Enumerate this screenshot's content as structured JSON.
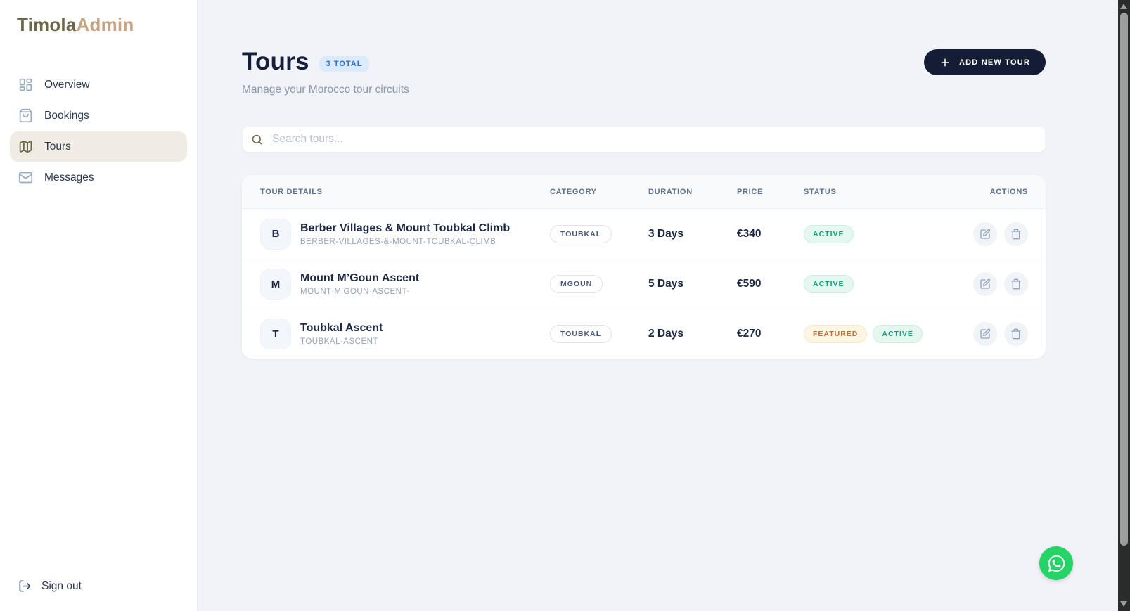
{
  "brand": {
    "primary": "Timola",
    "secondary": "Admin"
  },
  "sidebar": {
    "items": [
      {
        "label": "Overview",
        "icon": "dashboard-icon",
        "active": false
      },
      {
        "label": "Bookings",
        "icon": "shopping-bag-icon",
        "active": false
      },
      {
        "label": "Tours",
        "icon": "map-icon",
        "active": true
      },
      {
        "label": "Messages",
        "icon": "mail-icon",
        "active": false
      }
    ],
    "sign_out_label": "Sign out"
  },
  "header": {
    "title": "Tours",
    "total_badge": "3 TOTAL",
    "subtitle": "Manage your Morocco tour circuits",
    "add_button_label": "ADD NEW TOUR"
  },
  "search": {
    "placeholder": "Search tours..."
  },
  "table": {
    "columns": [
      "TOUR DETAILS",
      "CATEGORY",
      "DURATION",
      "PRICE",
      "STATUS",
      "ACTIONS"
    ],
    "rows": [
      {
        "initial": "B",
        "title": "Berber Villages & Mount Toubkal Climb",
        "slug": "BERBER-VILLAGES-&-MOUNT-TOUBKAL-CLIMB",
        "category": "TOUBKAL",
        "duration": "3 Days",
        "price": "€340",
        "statuses": [
          {
            "label": "ACTIVE",
            "type": "active"
          }
        ]
      },
      {
        "initial": "M",
        "title": "Mount M’Goun Ascent",
        "slug": "MOUNT-M’GOUN-ASCENT-",
        "category": "MGOUN",
        "duration": "5 Days",
        "price": "€590",
        "statuses": [
          {
            "label": "ACTIVE",
            "type": "active"
          }
        ]
      },
      {
        "initial": "T",
        "title": "Toubkal Ascent",
        "slug": "TOUBKAL-ASCENT",
        "category": "TOUBKAL",
        "duration": "2 Days",
        "price": "€270",
        "statuses": [
          {
            "label": "FEATURED",
            "type": "featured"
          },
          {
            "label": "ACTIVE",
            "type": "active"
          }
        ]
      }
    ]
  },
  "colors": {
    "brand_primary": "#6b6748",
    "brand_secondary": "#c7a383",
    "accent_dark": "#141d33",
    "active_badge": "#0ea37f",
    "featured_badge": "#c0703d",
    "total_badge_blue": "#2c6fd6",
    "whatsapp_green": "#25d366",
    "main_background": "#f1f3f8"
  }
}
